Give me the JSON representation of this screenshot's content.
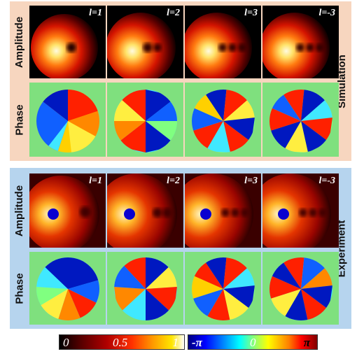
{
  "sections": {
    "simulation": "Simulation",
    "experiment": "Experiment"
  },
  "rows": {
    "amplitude": "Amplitude",
    "phase": "Phase"
  },
  "columns": [
    "l=1",
    "l=2",
    "l=3",
    "l=-3"
  ],
  "columns_experiment": [
    "l=1",
    "l=2",
    "l=3",
    "l=-3"
  ],
  "colorbars": {
    "amplitude": {
      "min": "0",
      "mid": "0.5",
      "max": "1"
    },
    "phase": {
      "min": "-π",
      "mid": "0",
      "max": "π"
    }
  },
  "colors": {
    "simulation_bg": "#f7d6bf",
    "experiment_bg": "#b6d4ee",
    "phase_bg": "#7fe07e",
    "marker": "#0011cc"
  }
}
